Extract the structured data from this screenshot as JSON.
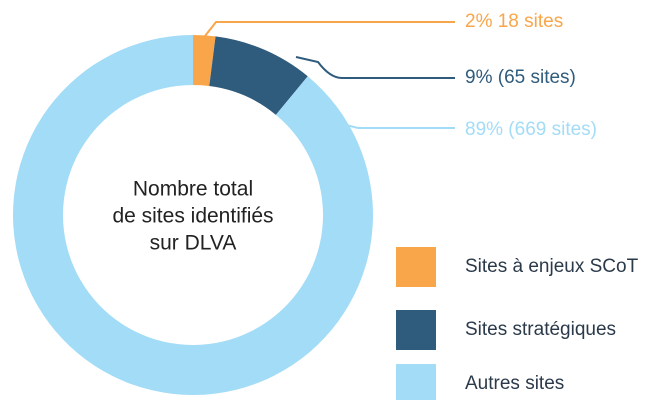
{
  "chart_data": {
    "type": "pie",
    "categories": [
      "Sites à enjeux SCoT",
      "Sites stratégiques",
      "Autres sites"
    ],
    "values": [
      2,
      9,
      89
    ],
    "value_labels": [
      "2% 18 sites",
      "9% (65 sites)",
      "89% (669 sites)"
    ],
    "colors": [
      "#f9a64a",
      "#2f5b7c",
      "#a3dcf7"
    ],
    "center_text": [
      "Nombre total",
      "de sites identifiés",
      "sur DLVA"
    ]
  }
}
